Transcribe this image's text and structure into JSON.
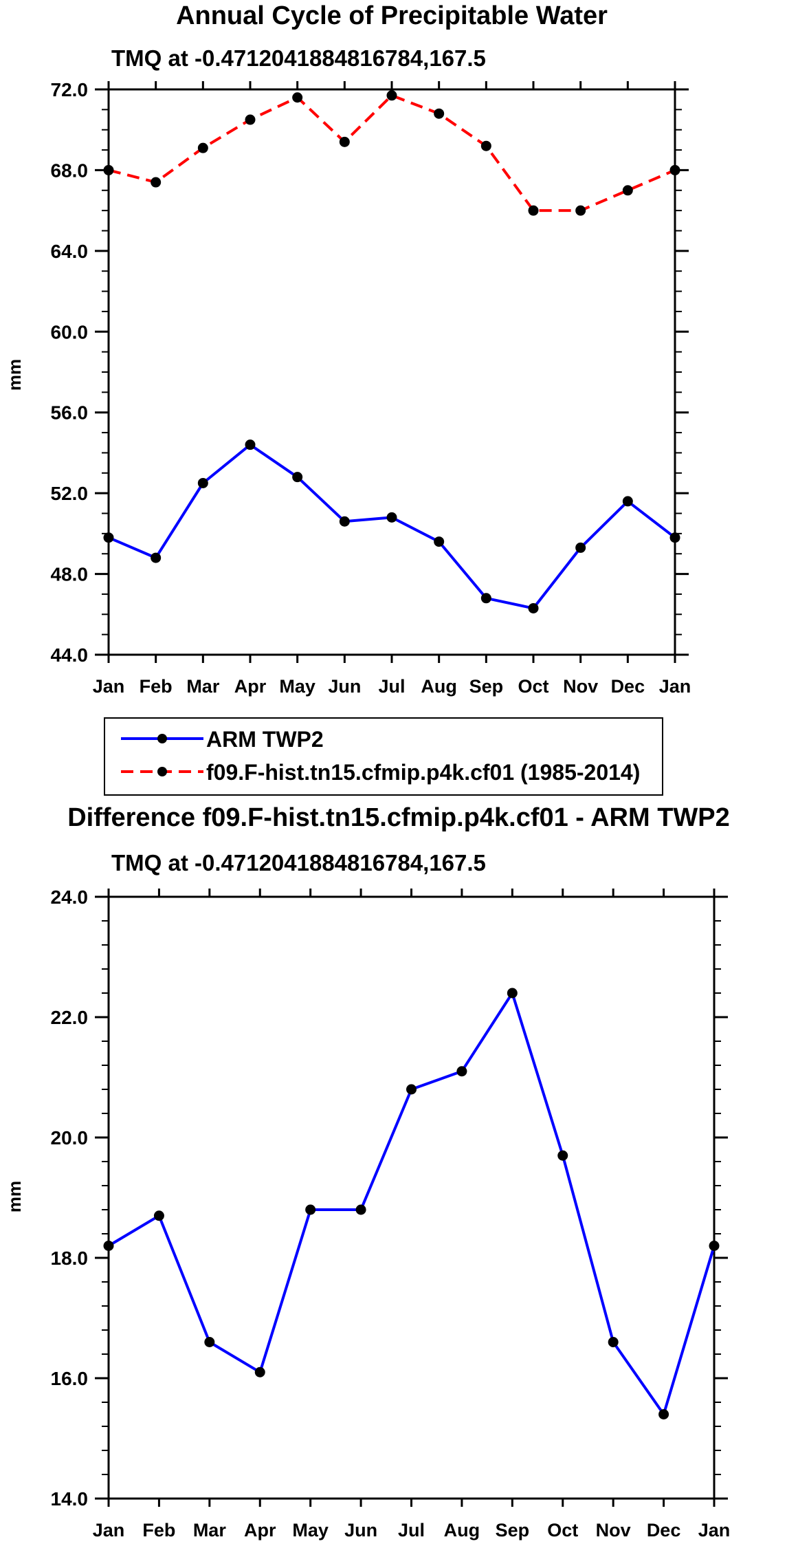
{
  "chart_data": [
    {
      "type": "line",
      "title": "Annual Cycle of Precipitable Water",
      "subtitle": "TMQ at -0.4712041884816784,167.5",
      "xlabel": "",
      "ylabel": "mm",
      "categories": [
        "Jan",
        "Feb",
        "Mar",
        "Apr",
        "May",
        "Jun",
        "Jul",
        "Aug",
        "Sep",
        "Oct",
        "Nov",
        "Dec",
        "Jan"
      ],
      "ylim": [
        44.0,
        72.0
      ],
      "yticks": [
        "44.0",
        "48.0",
        "52.0",
        "56.0",
        "60.0",
        "64.0",
        "68.0",
        "72.0"
      ],
      "yminor": 1.0,
      "series": [
        {
          "name": "ARM TWP2",
          "color": "#0000ff",
          "dash": "solid",
          "values": [
            49.8,
            48.8,
            52.5,
            54.4,
            52.8,
            50.6,
            50.8,
            49.6,
            46.8,
            46.3,
            49.3,
            51.6,
            49.8
          ]
        },
        {
          "name": "f09.F-hist.tn15.cfmip.p4k.cf01 (1985-2014)",
          "color": "#ff0000",
          "dash": "dashed",
          "values": [
            68.0,
            67.4,
            69.1,
            70.5,
            71.6,
            69.4,
            71.7,
            70.8,
            69.2,
            66.0,
            66.0,
            67.0,
            68.0
          ]
        }
      ],
      "legend": {
        "placement": "bottom",
        "entries": [
          "ARM TWP2",
          "f09.F-hist.tn15.cfmip.p4k.cf01 (1985-2014)"
        ]
      }
    },
    {
      "type": "line",
      "title": "Difference f09.F-hist.tn15.cfmip.p4k.cf01 - ARM TWP2",
      "subtitle": "TMQ at -0.4712041884816784,167.5",
      "xlabel": "",
      "ylabel": "mm",
      "categories": [
        "Jan",
        "Feb",
        "Mar",
        "Apr",
        "May",
        "Jun",
        "Jul",
        "Aug",
        "Sep",
        "Oct",
        "Nov",
        "Dec",
        "Jan"
      ],
      "ylim": [
        14.0,
        24.0
      ],
      "yticks": [
        "14.0",
        "16.0",
        "18.0",
        "20.0",
        "22.0",
        "24.0"
      ],
      "yminor": 0.4,
      "series": [
        {
          "name": "Difference",
          "color": "#0000ff",
          "dash": "solid",
          "values": [
            18.2,
            18.7,
            16.6,
            16.1,
            18.8,
            18.8,
            20.8,
            21.1,
            22.4,
            19.7,
            16.6,
            15.4,
            18.2
          ]
        }
      ]
    }
  ]
}
